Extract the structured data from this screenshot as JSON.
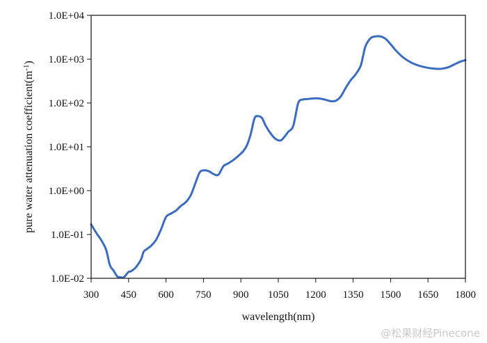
{
  "chart_data": {
    "type": "line",
    "xlabel": "wavelength(nm)",
    "ylabel": "pure water attenuation coefficient(m",
    "ylabel_unit_sup": "-1",
    "ylabel_close": ")",
    "xlim": [
      300,
      1800
    ],
    "ylim": [
      0.01,
      10000
    ],
    "yscale": "log",
    "x_ticks": [
      300,
      450,
      600,
      750,
      900,
      1050,
      1200,
      1350,
      1500,
      1650,
      1800
    ],
    "x_tick_labels": [
      "300",
      "450",
      "600",
      "750",
      "900",
      "1050",
      "1200",
      "1350",
      "1500",
      "1650",
      "1800"
    ],
    "y_ticks": [
      0.01,
      0.1,
      1,
      10,
      100,
      1000,
      10000
    ],
    "y_tick_labels": [
      "1.0E-02",
      "1.0E-01",
      "1.0E+00",
      "1.0E+01",
      "1.0E+02",
      "1.0E+03",
      "1.0E+04"
    ],
    "grid": false,
    "line_color": "#3a6cc0",
    "series": [
      {
        "x": [
          300,
          320,
          340,
          360,
          375,
          390,
          405,
          420,
          430,
          440,
          450,
          460,
          480,
          500,
          510,
          520,
          540,
          560,
          580,
          600,
          620,
          640,
          660,
          680,
          700,
          720,
          735,
          750,
          770,
          790,
          810,
          830,
          850,
          870,
          890,
          910,
          925,
          940,
          955,
          970,
          985,
          1000,
          1020,
          1040,
          1060,
          1075,
          1090,
          1110,
          1130,
          1150,
          1160,
          1180,
          1200,
          1220,
          1240,
          1260,
          1280,
          1300,
          1320,
          1340,
          1360,
          1380,
          1390,
          1400,
          1420,
          1440,
          1460,
          1480,
          1500,
          1520,
          1550,
          1580,
          1610,
          1640,
          1670,
          1700,
          1730,
          1760,
          1780,
          1800
        ],
        "y": [
          0.17,
          0.11,
          0.075,
          0.045,
          0.02,
          0.015,
          0.011,
          0.0105,
          0.0105,
          0.012,
          0.014,
          0.0145,
          0.018,
          0.027,
          0.04,
          0.045,
          0.055,
          0.075,
          0.13,
          0.25,
          0.3,
          0.35,
          0.45,
          0.55,
          0.8,
          1.6,
          2.6,
          2.9,
          2.8,
          2.4,
          2.3,
          3.6,
          4.2,
          5,
          6.2,
          8,
          11,
          20,
          45,
          50,
          45,
          30,
          20,
          15,
          14,
          17,
          22,
          30,
          100,
          120,
          122,
          125,
          128,
          125,
          118,
          110,
          112,
          140,
          220,
          330,
          450,
          700,
          1200,
          2000,
          3000,
          3300,
          3300,
          2900,
          2200,
          1600,
          1100,
          850,
          720,
          650,
          610,
          600,
          650,
          780,
          880,
          950
        ]
      }
    ]
  },
  "watermark": "@松果财经Pinecone"
}
